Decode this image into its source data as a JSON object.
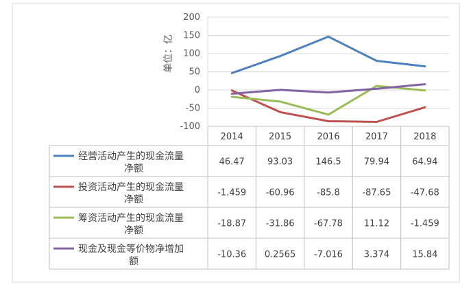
{
  "chart_data": {
    "type": "line",
    "title": "",
    "xlabel": "",
    "ylabel": "单位：亿",
    "ylim": [
      -100,
      200
    ],
    "yticks": [
      200,
      150,
      100,
      50,
      0,
      -50,
      -100
    ],
    "grid": true,
    "legend_placement": "data-table-left",
    "categories": [
      "2014",
      "2015",
      "2016",
      "2017",
      "2018"
    ],
    "series": [
      {
        "name_line1": "经营活动产生的现金流量",
        "name_line2": "净额",
        "color": "#4F81BD",
        "values": [
          46.47,
          93.03,
          146.5,
          79.94,
          64.94
        ],
        "labels": [
          "46.47",
          "93.03",
          "146.5",
          "79.94",
          "64.94"
        ]
      },
      {
        "name_line1": "投资活动产生的现金流量",
        "name_line2": "净额",
        "color": "#C0504D",
        "values": [
          -1.459,
          -60.96,
          -85.8,
          -87.65,
          -47.68
        ],
        "labels": [
          "-1.459",
          "-60.96",
          "-85.8",
          "-87.65",
          "-47.68"
        ]
      },
      {
        "name_line1": "筹资活动产生的现金流量",
        "name_line2": "净额",
        "color": "#9BBB59",
        "values": [
          -18.87,
          -31.86,
          -67.78,
          11.12,
          -1.459
        ],
        "labels": [
          "-18.87",
          "-31.86",
          "-67.78",
          "11.12",
          "-1.459"
        ]
      },
      {
        "name_line1": "现金及现金等价物净增加",
        "name_line2": "额",
        "color": "#8064A2",
        "values": [
          -10.36,
          0.2565,
          -7.016,
          3.374,
          15.84
        ],
        "labels": [
          "-10.36",
          "0.2565",
          "-7.016",
          "3.374",
          "15.84"
        ]
      }
    ]
  }
}
